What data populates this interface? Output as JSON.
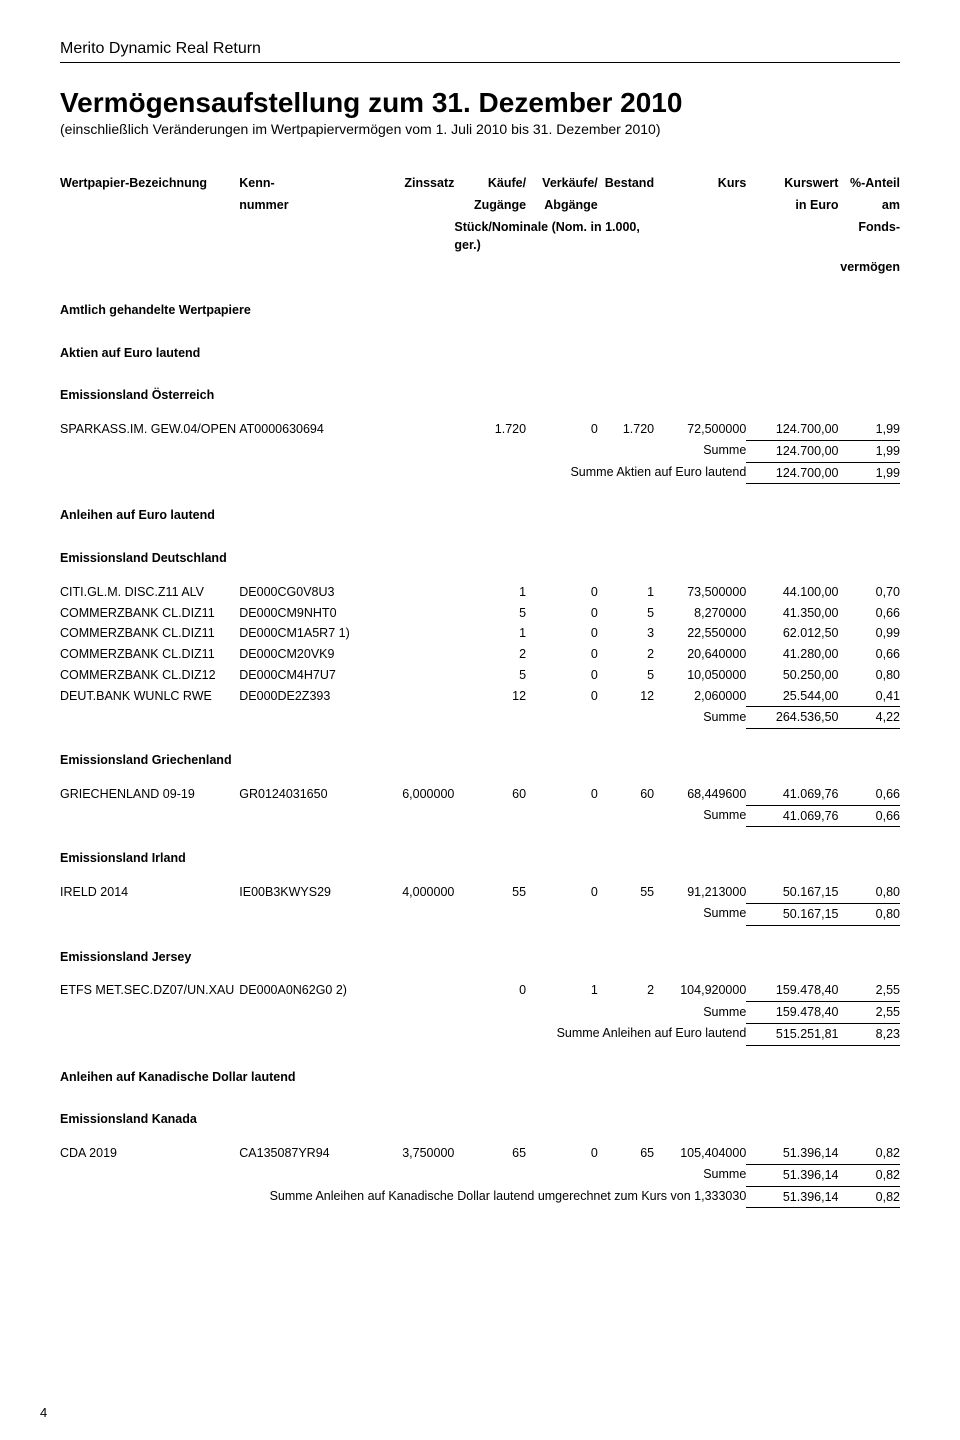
{
  "fund_name": "Merito Dynamic Real Return",
  "title": "Vermögensaufstellung zum 31. Dezember 2010",
  "subtitle": "(einschließlich Veränderungen im Wertpapiervermögen vom 1. Juli 2010 bis 31. Dezember 2010)",
  "page_number": "4",
  "headers": {
    "name": "Wertpapier-Bezeichnung",
    "kenn1": "Kenn-",
    "kenn2": "nummer",
    "zins": "Zinssatz",
    "kauf1": "Käufe/",
    "kauf2": "Zugänge",
    "verk1": "Verkäufe/",
    "verk2": "Abgänge",
    "best": "Bestand",
    "kurs": "Kurs",
    "wert1": "Kurswert",
    "wert2": "in Euro",
    "ant1": "%-Anteil",
    "ant2": "am",
    "ant3": "Fonds-",
    "ant4": "vermögen",
    "stk": "Stück/Nominale (Nom. in 1.000, ger.)"
  },
  "s_amtlich": "Amtlich gehandelte Wertpapiere",
  "s_aktien_eur": "Aktien auf Euro lautend",
  "s_oesterreich": "Emissionsland Österreich",
  "s_anleihen_eur": "Anleihen auf Euro lautend",
  "s_deutschland": "Emissionsland Deutschland",
  "s_griechenland": "Emissionsland Griechenland",
  "s_irland": "Emissionsland Irland",
  "s_jersey": "Emissionsland Jersey",
  "s_anleihen_cad": "Anleihen auf Kanadische Dollar lautend",
  "s_kanada": "Emissionsland Kanada",
  "lbl_summe": "Summe",
  "lbl_summe_aktien_eur": "Summe Aktien auf Euro lautend",
  "lbl_summe_anleihen_eur": "Summe Anleihen auf Euro lautend",
  "lbl_summe_anleihen_cad": "Summe Anleihen auf Kanadische Dollar lautend umgerechnet zum Kurs von 1,333030",
  "rows": {
    "at1": {
      "name": "SPARKASS.IM. GEW.04/OPEN",
      "kenn": "AT0000630694",
      "zins": "",
      "kauf": "1.720",
      "verk": "0",
      "best": "1.720",
      "kurs": "72,500000",
      "wert": "124.700,00",
      "ant": "1,99"
    },
    "at_sum": {
      "wert": "124.700,00",
      "ant": "1,99"
    },
    "at_tot": {
      "wert": "124.700,00",
      "ant": "1,99"
    },
    "de1": {
      "name": "CITI.GL.M. DISC.Z11 ALV",
      "kenn": "DE000CG0V8U3",
      "zins": "",
      "kauf": "1",
      "verk": "0",
      "best": "1",
      "kurs": "73,500000",
      "wert": "44.100,00",
      "ant": "0,70"
    },
    "de2": {
      "name": "COMMERZBANK CL.DIZ11",
      "kenn": "DE000CM9NHT0",
      "zins": "",
      "kauf": "5",
      "verk": "0",
      "best": "5",
      "kurs": "8,270000",
      "wert": "41.350,00",
      "ant": "0,66"
    },
    "de3": {
      "name": "COMMERZBANK CL.DIZ11",
      "kenn": "DE000CM1A5R7 1)",
      "zins": "",
      "kauf": "1",
      "verk": "0",
      "best": "3",
      "kurs": "22,550000",
      "wert": "62.012,50",
      "ant": "0,99"
    },
    "de4": {
      "name": "COMMERZBANK CL.DIZ11",
      "kenn": "DE000CM20VK9",
      "zins": "",
      "kauf": "2",
      "verk": "0",
      "best": "2",
      "kurs": "20,640000",
      "wert": "41.280,00",
      "ant": "0,66"
    },
    "de5": {
      "name": "COMMERZBANK CL.DIZ12",
      "kenn": "DE000CM4H7U7",
      "zins": "",
      "kauf": "5",
      "verk": "0",
      "best": "5",
      "kurs": "10,050000",
      "wert": "50.250,00",
      "ant": "0,80"
    },
    "de6": {
      "name": "DEUT.BANK WUNLC RWE",
      "kenn": "DE000DE2Z393",
      "zins": "",
      "kauf": "12",
      "verk": "0",
      "best": "12",
      "kurs": "2,060000",
      "wert": "25.544,00",
      "ant": "0,41"
    },
    "de_sum": {
      "wert": "264.536,50",
      "ant": "4,22"
    },
    "gr1": {
      "name": "GRIECHENLAND 09-19",
      "kenn": "GR0124031650",
      "zins": "6,000000",
      "kauf": "60",
      "verk": "0",
      "best": "60",
      "kurs": "68,449600",
      "wert": "41.069,76",
      "ant": "0,66"
    },
    "gr_sum": {
      "wert": "41.069,76",
      "ant": "0,66"
    },
    "ie1": {
      "name": "IRELD 2014",
      "kenn": "IE00B3KWYS29",
      "zins": "4,000000",
      "kauf": "55",
      "verk": "0",
      "best": "55",
      "kurs": "91,213000",
      "wert": "50.167,15",
      "ant": "0,80"
    },
    "ie_sum": {
      "wert": "50.167,15",
      "ant": "0,80"
    },
    "je1": {
      "name": "ETFS MET.SEC.DZ07/UN.XAU",
      "kenn": "DE000A0N62G0 2)",
      "zins": "",
      "kauf": "0",
      "verk": "1",
      "best": "2",
      "kurs": "104,920000",
      "wert": "159.478,40",
      "ant": "2,55"
    },
    "je_sum": {
      "wert": "159.478,40",
      "ant": "2,55"
    },
    "eur_anl_tot": {
      "wert": "515.251,81",
      "ant": "8,23"
    },
    "ca1": {
      "name": "CDA 2019",
      "kenn": "CA135087YR94",
      "zins": "3,750000",
      "kauf": "65",
      "verk": "0",
      "best": "65",
      "kurs": "105,404000",
      "wert": "51.396,14",
      "ant": "0,82"
    },
    "ca_sum": {
      "wert": "51.396,14",
      "ant": "0,82"
    },
    "ca_tot": {
      "wert": "51.396,14",
      "ant": "0,82"
    }
  }
}
